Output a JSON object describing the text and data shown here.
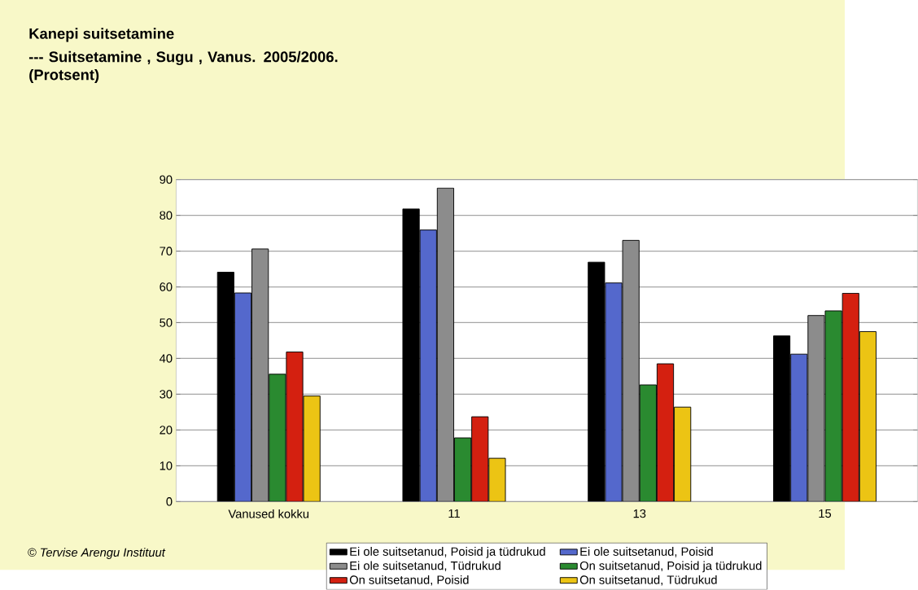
{
  "chart_data": {
    "type": "bar",
    "title": "Kanepi suitsetamine",
    "subtitle": "--- Suitsetamine , Sugu , Vanus. 2005/2006. (Protsent)",
    "categories": [
      "Vanused kokku",
      "11",
      "13",
      "15"
    ],
    "series": [
      {
        "name": "Ei ole suitsetanud, Poisid ja tüdrukud",
        "color": "#000000",
        "values": [
          64.1,
          81.8,
          66.9,
          46.3
        ]
      },
      {
        "name": "Ei ole suitsetanud, Poisid",
        "color": "#5468cc",
        "values": [
          58.3,
          75.9,
          61.1,
          41.2
        ]
      },
      {
        "name": "Ei ole suitsetanud, Tüdrukud",
        "color": "#8c8c8c",
        "values": [
          70.6,
          87.6,
          73.0,
          52.0
        ]
      },
      {
        "name": "On suitsetanud, Poisid ja tüdrukud",
        "color": "#2a8a30",
        "values": [
          35.6,
          17.8,
          32.6,
          53.3
        ]
      },
      {
        "name": "On suitsetanud, Poisid",
        "color": "#d42010",
        "values": [
          41.8,
          23.7,
          38.5,
          58.2
        ]
      },
      {
        "name": "On suitsetanud, Tüdrukud",
        "color": "#ecc414",
        "values": [
          29.5,
          12.1,
          26.4,
          47.5
        ]
      }
    ],
    "ylim": [
      0,
      90
    ],
    "yticks": [
      0,
      10,
      20,
      30,
      40,
      50,
      60,
      70,
      80,
      90
    ],
    "grid": "y",
    "legend": "bottom",
    "annotations": [
      "© Tervise Arengu Instituut"
    ]
  }
}
